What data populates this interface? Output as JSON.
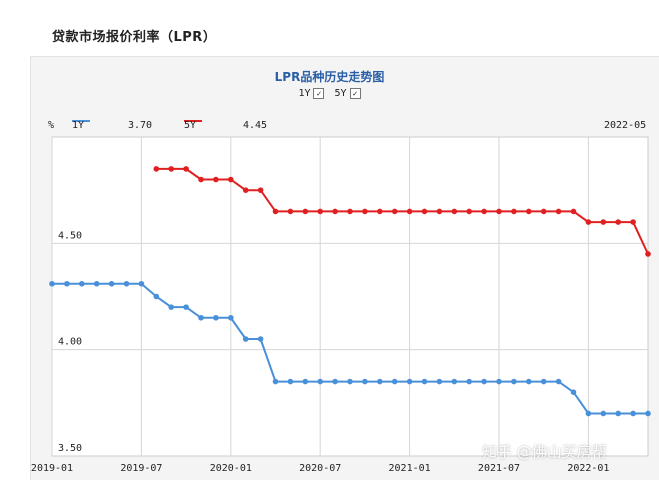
{
  "heading": "贷款市场报价利率（LPR）",
  "watermark": "知乎 @佛山买房帮",
  "chart_data": {
    "type": "line",
    "title": "LPR品种历史走势图",
    "toggles": [
      {
        "label": "1Y",
        "checked": true
      },
      {
        "label": "5Y",
        "checked": true
      }
    ],
    "unit_label": "%",
    "cursor_date": "2022-05",
    "x_tick_labels": [
      "2019-01",
      "2019-07",
      "2020-01",
      "2020-07",
      "2021-01",
      "2021-07",
      "2022-01"
    ],
    "y_tick_labels": [
      "4.50",
      "4.00",
      "3.50"
    ],
    "ylim": [
      3.5,
      5.0
    ],
    "grid": true,
    "legend_position": "top-left",
    "series": [
      {
        "name": "1Y",
        "latest": "3.70",
        "color": "#4a90d9",
        "x": [
          "2019-01",
          "2019-02",
          "2019-03",
          "2019-04",
          "2019-05",
          "2019-06",
          "2019-07",
          "2019-08",
          "2019-09",
          "2019-10",
          "2019-11",
          "2019-12",
          "2020-01",
          "2020-02",
          "2020-03",
          "2020-04",
          "2020-05",
          "2020-06",
          "2020-07",
          "2020-08",
          "2020-09",
          "2020-10",
          "2020-11",
          "2020-12",
          "2021-01",
          "2021-02",
          "2021-03",
          "2021-04",
          "2021-05",
          "2021-06",
          "2021-07",
          "2021-08",
          "2021-09",
          "2021-10",
          "2021-11",
          "2021-12",
          "2022-01",
          "2022-02",
          "2022-03",
          "2022-04",
          "2022-05"
        ],
        "values": [
          4.31,
          4.31,
          4.31,
          4.31,
          4.31,
          4.31,
          4.31,
          4.25,
          4.2,
          4.2,
          4.15,
          4.15,
          4.15,
          4.05,
          4.05,
          3.85,
          3.85,
          3.85,
          3.85,
          3.85,
          3.85,
          3.85,
          3.85,
          3.85,
          3.85,
          3.85,
          3.85,
          3.85,
          3.85,
          3.85,
          3.85,
          3.85,
          3.85,
          3.85,
          3.85,
          3.8,
          3.7,
          3.7,
          3.7,
          3.7,
          3.7
        ]
      },
      {
        "name": "5Y",
        "latest": "4.45",
        "color": "#e02020",
        "x": [
          "2019-08",
          "2019-09",
          "2019-10",
          "2019-11",
          "2019-12",
          "2020-01",
          "2020-02",
          "2020-03",
          "2020-04",
          "2020-05",
          "2020-06",
          "2020-07",
          "2020-08",
          "2020-09",
          "2020-10",
          "2020-11",
          "2020-12",
          "2021-01",
          "2021-02",
          "2021-03",
          "2021-04",
          "2021-05",
          "2021-06",
          "2021-07",
          "2021-08",
          "2021-09",
          "2021-10",
          "2021-11",
          "2021-12",
          "2022-01",
          "2022-02",
          "2022-03",
          "2022-04",
          "2022-05"
        ],
        "values": [
          4.85,
          4.85,
          4.85,
          4.8,
          4.8,
          4.8,
          4.75,
          4.75,
          4.65,
          4.65,
          4.65,
          4.65,
          4.65,
          4.65,
          4.65,
          4.65,
          4.65,
          4.65,
          4.65,
          4.65,
          4.65,
          4.65,
          4.65,
          4.65,
          4.65,
          4.65,
          4.65,
          4.65,
          4.65,
          4.6,
          4.6,
          4.6,
          4.6,
          4.45
        ]
      }
    ]
  }
}
